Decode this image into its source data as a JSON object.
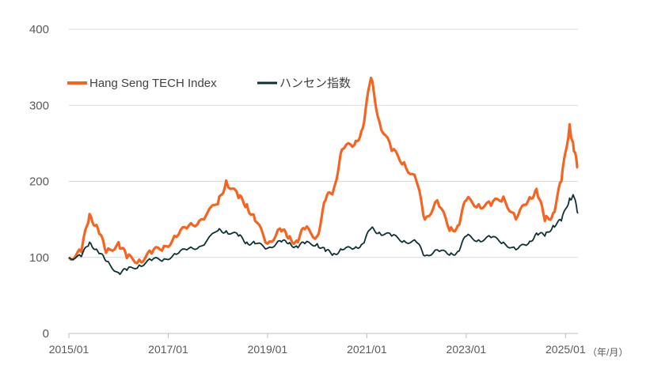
{
  "chart_data": {
    "type": "line",
    "title": "",
    "xlabel": "",
    "ylabel": "",
    "x_unit_label": "（年/月）",
    "ylim": [
      0,
      400
    ],
    "y_ticks": [
      "0",
      "100",
      "200",
      "300",
      "400"
    ],
    "x_ticks": [
      "2015/01",
      "2017/01",
      "2019/01",
      "2021/01",
      "2023/01",
      "2025/01"
    ],
    "grid": true,
    "legend_position": "top-left",
    "series": [
      {
        "name": "Hang Seng TECH Index",
        "color": "#f26522",
        "x": [
          "2015/01",
          "2015/04",
          "2015/06",
          "2015/08",
          "2015/10",
          "2016/01",
          "2016/03",
          "2016/06",
          "2016/09",
          "2016/12",
          "2017/03",
          "2017/06",
          "2017/09",
          "2018/01",
          "2018/03",
          "2018/06",
          "2018/08",
          "2018/10",
          "2019/01",
          "2019/04",
          "2019/06",
          "2019/08",
          "2019/10",
          "2020/01",
          "2020/03",
          "2020/05",
          "2020/07",
          "2020/10",
          "2020/12",
          "2021/02",
          "2021/04",
          "2021/07",
          "2021/10",
          "2022/01",
          "2022/03",
          "2022/06",
          "2022/09",
          "2022/11",
          "2023/01",
          "2023/04",
          "2023/07",
          "2023/10",
          "2024/01",
          "2024/04",
          "2024/06",
          "2024/08",
          "2024/10",
          "2024/12",
          "2025/02",
          "2025/03",
          "2025/04"
        ],
        "values": [
          100,
          107,
          157,
          138,
          106,
          120,
          99,
          97,
          105,
          115,
          127,
          142,
          150,
          170,
          201,
          178,
          170,
          148,
          118,
          138,
          125,
          122,
          137,
          128,
          175,
          190,
          242,
          248,
          270,
          336,
          279,
          240,
          225,
          200,
          150,
          175,
          135,
          142,
          175,
          170,
          168,
          180,
          150,
          175,
          190,
          148,
          158,
          200,
          275,
          240,
          218
        ]
      },
      {
        "name": "ハンセン指数",
        "color": "#0e2f33",
        "x": [
          "2015/01",
          "2015/04",
          "2015/06",
          "2015/08",
          "2015/10",
          "2016/01",
          "2016/03",
          "2016/06",
          "2016/09",
          "2016/12",
          "2017/03",
          "2017/06",
          "2017/09",
          "2018/01",
          "2018/03",
          "2018/06",
          "2018/08",
          "2018/10",
          "2019/01",
          "2019/04",
          "2019/06",
          "2019/08",
          "2019/10",
          "2020/01",
          "2020/03",
          "2020/05",
          "2020/07",
          "2020/10",
          "2020/12",
          "2021/02",
          "2021/04",
          "2021/07",
          "2021/10",
          "2022/01",
          "2022/03",
          "2022/06",
          "2022/09",
          "2022/11",
          "2023/01",
          "2023/04",
          "2023/07",
          "2023/10",
          "2024/01",
          "2024/04",
          "2024/06",
          "2024/08",
          "2024/10",
          "2024/12",
          "2025/02",
          "2025/03",
          "2025/04"
        ],
        "values": [
          100,
          101,
          120,
          108,
          95,
          80,
          83,
          90,
          96,
          98,
          104,
          112,
          115,
          135,
          135,
          128,
          120,
          118,
          112,
          122,
          118,
          115,
          118,
          118,
          108,
          105,
          110,
          112,
          118,
          138,
          133,
          128,
          122,
          120,
          102,
          110,
          103,
          108,
          128,
          123,
          126,
          120,
          110,
          118,
          132,
          128,
          142,
          148,
          178,
          180,
          158
        ]
      }
    ]
  }
}
